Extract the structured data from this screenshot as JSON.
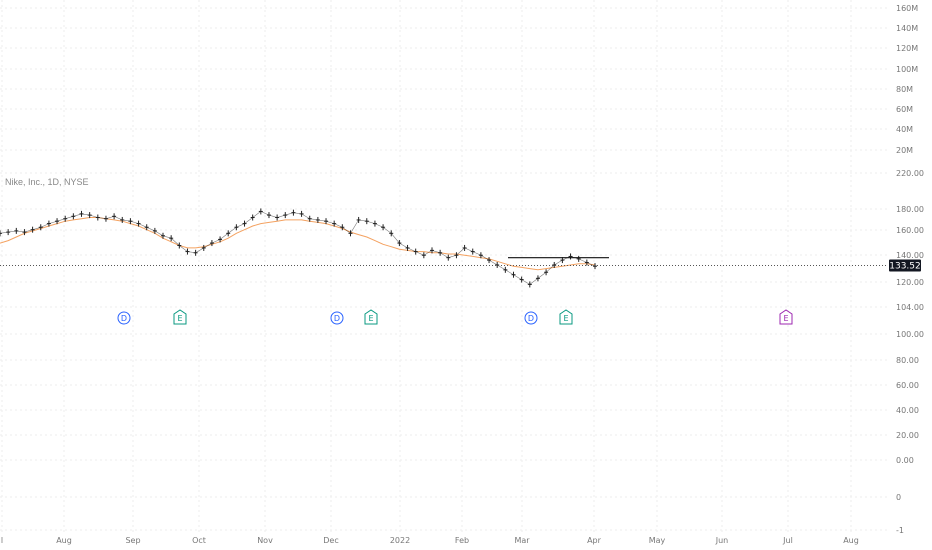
{
  "chart_data": {
    "type": "line",
    "legend_text": "Nike, Inc., 1D, NYSE",
    "last_price": "133.52",
    "colors": {
      "price": "#222222",
      "ma": "#f4a261",
      "grid": "#eeeeee",
      "axis_text": "#777777",
      "dividend": "#2962ff",
      "earnings": "#089981",
      "earnings_future": "#9c27b0"
    },
    "price_axis_labels": [
      "180.00",
      "160.00",
      "140.00",
      "120.00",
      "104.00",
      "100.00",
      "80.00",
      "60.00",
      "40.00",
      "20.00",
      "0.00",
      "0",
      "-1"
    ],
    "volume_axis_labels": [
      "160M",
      "140M",
      "120M",
      "100M",
      "80M",
      "60M",
      "40M",
      "20M",
      "220.00"
    ],
    "x_tick_labels": [
      "l",
      "Aug",
      "Sep",
      "Oct",
      "Nov",
      "Dec",
      "2022",
      "Feb",
      "Mar",
      "Apr",
      "May",
      "Jun",
      "Jul",
      "Aug"
    ],
    "price_values": [
      160,
      161,
      162,
      161,
      163,
      165,
      168,
      170,
      172,
      174,
      176,
      175,
      173,
      172,
      174,
      171,
      170,
      168,
      165,
      162,
      158,
      156,
      150,
      145,
      144,
      148,
      152,
      155,
      160,
      165,
      168,
      173,
      178,
      175,
      173,
      175,
      177,
      176,
      172,
      171,
      170,
      168,
      165,
      160,
      171,
      170,
      168,
      165,
      160,
      152,
      148,
      145,
      142,
      146,
      144,
      140,
      142,
      148,
      145,
      142,
      138,
      134,
      130,
      126,
      122,
      118,
      123,
      128,
      134,
      138,
      141,
      139,
      136,
      133
    ],
    "ma_values": [
      152,
      154,
      157,
      160,
      162,
      164,
      166,
      168,
      170,
      171,
      172,
      173,
      173,
      172,
      171,
      170,
      168,
      166,
      163,
      160,
      156,
      153,
      150,
      148,
      148,
      149,
      151,
      153,
      156,
      160,
      163,
      166,
      168,
      169,
      170,
      171,
      171,
      171,
      170,
      169,
      168,
      166,
      164,
      161,
      159,
      157,
      154,
      151,
      149,
      147,
      146,
      145,
      145,
      144,
      144,
      143,
      143,
      142,
      141,
      140,
      139,
      137,
      135,
      133,
      132,
      131,
      130,
      131,
      132,
      133,
      134,
      135,
      135,
      134
    ],
    "resistance_level": 140,
    "events": [
      {
        "type": "dividend",
        "label": "D"
      },
      {
        "type": "earnings",
        "label": "E"
      },
      {
        "type": "dividend",
        "label": "D"
      },
      {
        "type": "earnings",
        "label": "E"
      },
      {
        "type": "dividend",
        "label": "D"
      },
      {
        "type": "earnings",
        "label": "E"
      },
      {
        "type": "earnings_future",
        "label": "E"
      }
    ]
  }
}
